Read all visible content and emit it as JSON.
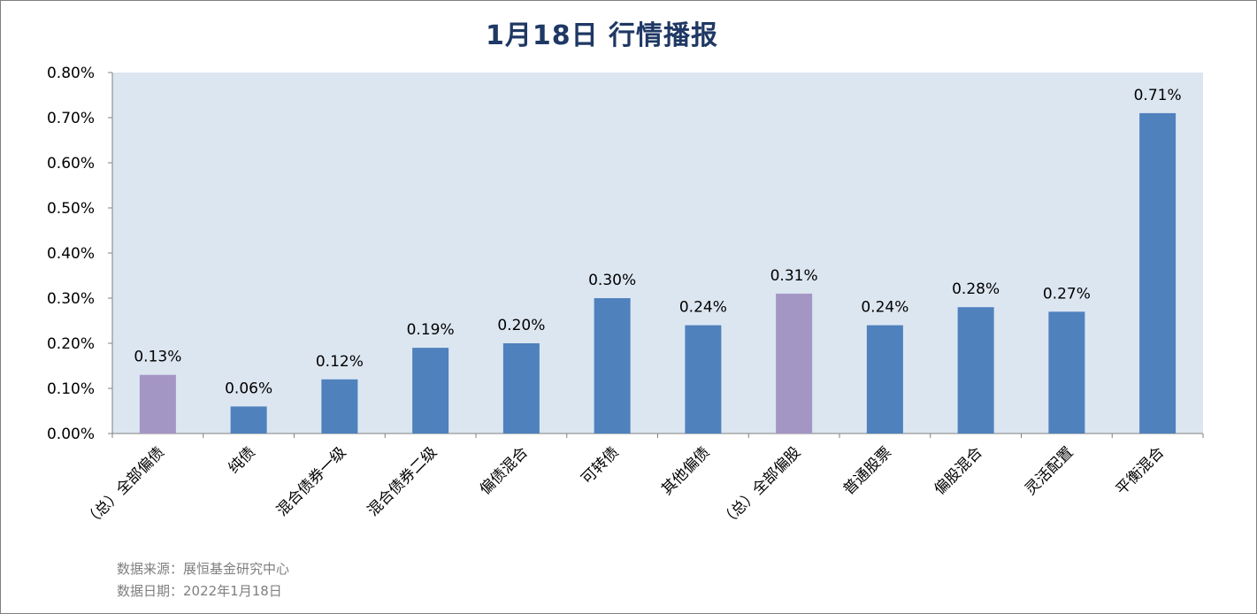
{
  "chart_data": {
    "type": "bar",
    "title": "1月18日  行情播报",
    "xlabel": "",
    "ylabel": "",
    "ylim": [
      0,
      0.8
    ],
    "yticks": [
      0,
      0.1,
      0.2,
      0.3,
      0.4,
      0.5,
      0.6,
      0.7,
      0.8
    ],
    "ytick_labels": [
      "0.00%",
      "0.10%",
      "0.20%",
      "0.30%",
      "0.40%",
      "0.50%",
      "0.60%",
      "0.70%",
      "0.80%"
    ],
    "grid": false,
    "legend": "none",
    "categories": [
      "（总）全部偏债",
      "纯债",
      "混合债券一级",
      "混合债券二级",
      "偏债混合",
      "可转债",
      "其他偏债",
      "（总）全部偏股",
      "普通股票",
      "偏股混合",
      "灵活配置",
      "平衡混合"
    ],
    "values": [
      0.13,
      0.06,
      0.12,
      0.19,
      0.2,
      0.3,
      0.24,
      0.31,
      0.24,
      0.28,
      0.27,
      0.71
    ],
    "value_labels": [
      "0.13%",
      "0.06%",
      "0.12%",
      "0.19%",
      "0.20%",
      "0.30%",
      "0.24%",
      "0.31%",
      "0.24%",
      "0.28%",
      "0.27%",
      "0.71%"
    ],
    "bar_colors": [
      "#a496c4",
      "#4f81bd",
      "#4f81bd",
      "#4f81bd",
      "#4f81bd",
      "#4f81bd",
      "#4f81bd",
      "#a496c4",
      "#4f81bd",
      "#4f81bd",
      "#4f81bd",
      "#4f81bd"
    ],
    "plot_background": "#dce6f1"
  },
  "footer": {
    "source": "数据来源：展恒基金研究中心",
    "date": "数据日期：2022年1月18日"
  },
  "colors": {
    "title": "#1f3864",
    "total_bar": "#a496c4",
    "bar": "#4f81bd",
    "note_text": "#7f7f7f"
  }
}
